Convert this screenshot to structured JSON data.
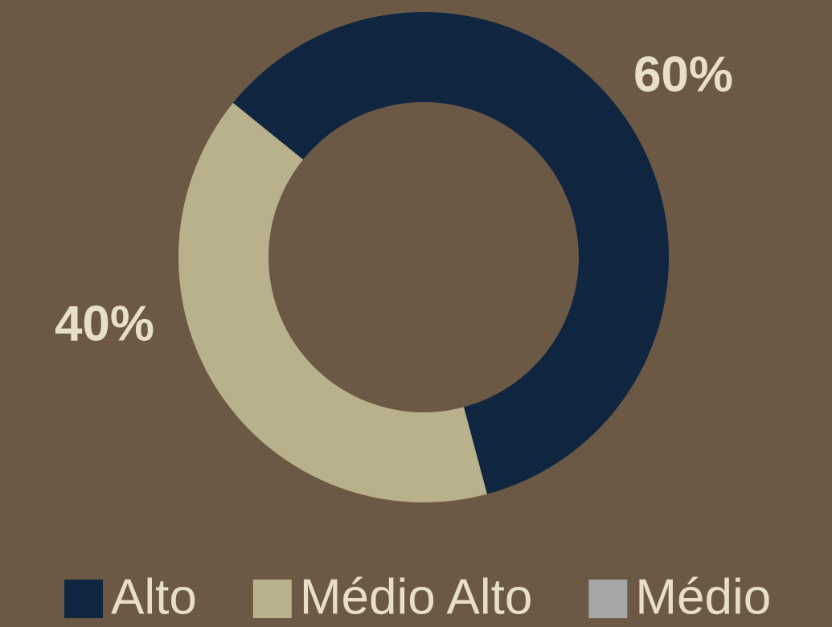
{
  "chart_data": {
    "type": "donut",
    "categories": [
      "Alto",
      "Médio Alto",
      "Médio"
    ],
    "values": [
      60,
      40,
      0
    ],
    "value_labels": [
      "60%",
      "40%",
      null
    ],
    "colors": [
      "#10253f",
      "#b9b18b",
      "#a6a6a6"
    ],
    "legend": "bottom"
  }
}
